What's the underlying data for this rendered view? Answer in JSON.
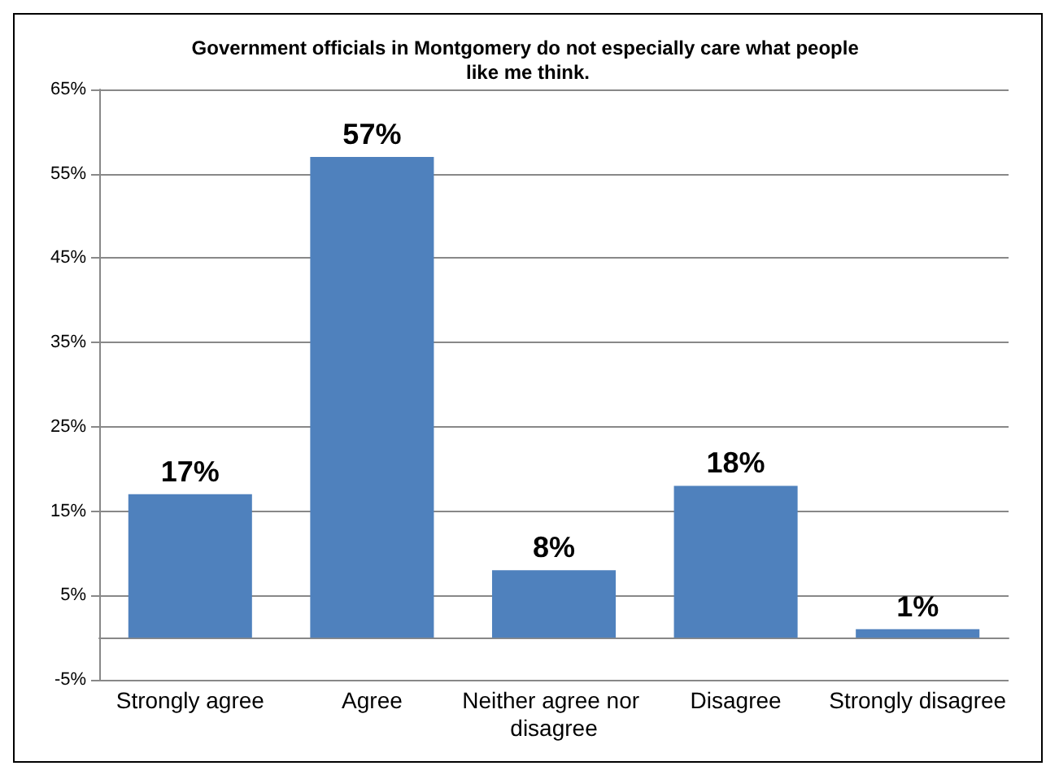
{
  "chart_data": {
    "type": "bar",
    "title": "Government officials in Montgomery do not especially care what people like me think.",
    "categories": [
      "Strongly agree",
      "Agree",
      "Neither agree nor disagree",
      "Disagree",
      "Strongly disagree"
    ],
    "values": [
      17,
      57,
      8,
      18,
      1
    ],
    "value_labels": [
      "17%",
      "57%",
      "8%",
      "18%",
      "1%"
    ],
    "color": "#4f81bd",
    "ylim": [
      -5,
      65
    ],
    "yticks": [
      {
        "value": -5,
        "label": "-5%"
      },
      {
        "value": 5,
        "label": "5%"
      },
      {
        "value": 15,
        "label": "15%"
      },
      {
        "value": 25,
        "label": "25%"
      },
      {
        "value": 35,
        "label": "35%"
      },
      {
        "value": 45,
        "label": "45%"
      },
      {
        "value": 55,
        "label": "55%"
      },
      {
        "value": 65,
        "label": "65%"
      }
    ],
    "grid": true
  }
}
